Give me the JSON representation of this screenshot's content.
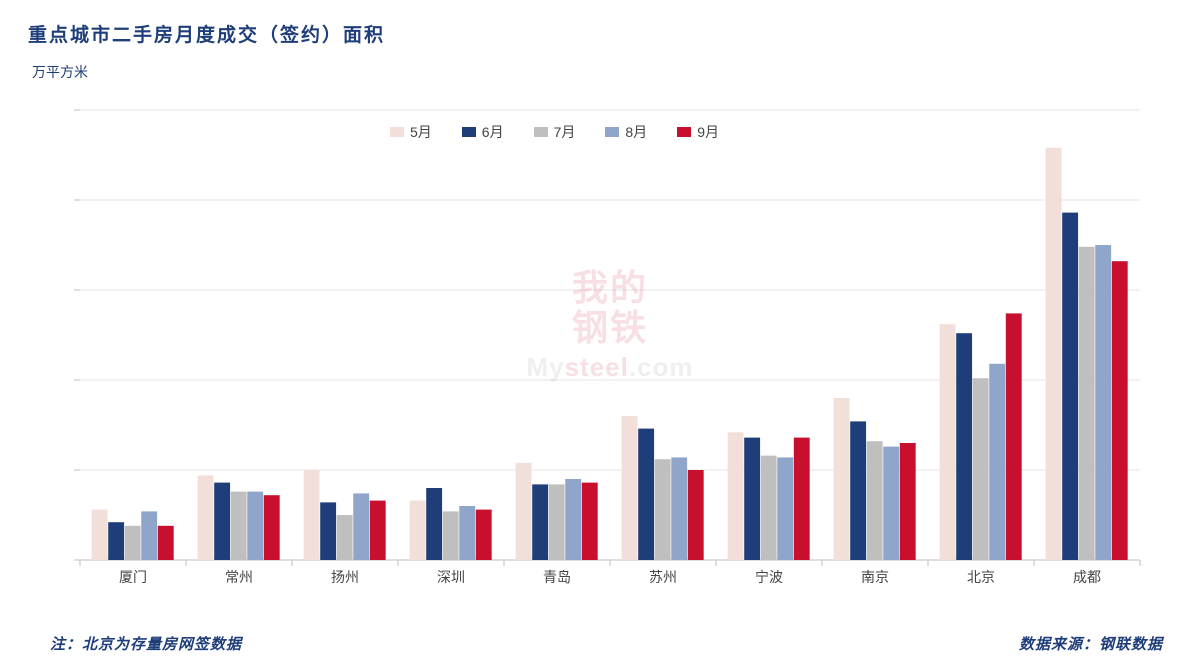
{
  "title": "重点城市二手房月度成交（签约）面积",
  "title_color": "#1f3e79",
  "y_unit": "万平方米",
  "y_unit_color": "#1f3e79",
  "footnote": "注：北京为存量房网签数据",
  "footnote_color": "#1f3e79",
  "source": "数据来源：钢联数据",
  "source_color": "#1f3e79",
  "watermark": {
    "line1": "我的",
    "line2": "钢铁",
    "sub_prefix": "My",
    "sub_red": "steel",
    "sub_suffix": ".com"
  },
  "chart": {
    "type": "bar",
    "background_color": "#ffffff",
    "grid_color": "#e6e6e6",
    "axis_color": "#bfbfbf",
    "ylim": [
      0,
      250
    ],
    "ytick_step": 50,
    "yticks": [
      0,
      50,
      100,
      150,
      200,
      250
    ],
    "categories": [
      "厦门",
      "常州",
      "扬州",
      "深圳",
      "青岛",
      "苏州",
      "宁波",
      "南京",
      "北京",
      "成都"
    ],
    "series": [
      {
        "label": "5月",
        "color": "#f3dfd9",
        "values": [
          28,
          47,
          50,
          33,
          54,
          80,
          71,
          90,
          131,
          229
        ]
      },
      {
        "label": "6月",
        "color": "#1f3e79",
        "values": [
          21,
          43,
          32,
          40,
          42,
          73,
          68,
          77,
          126,
          193
        ]
      },
      {
        "label": "7月",
        "color": "#bfbfbf",
        "values": [
          19,
          38,
          25,
          27,
          42,
          56,
          58,
          66,
          101,
          174
        ]
      },
      {
        "label": "8月",
        "color": "#8fa5c9",
        "values": [
          27,
          38,
          37,
          30,
          45,
          57,
          57,
          63,
          109,
          175
        ]
      },
      {
        "label": "9月",
        "color": "#c8102e",
        "values": [
          19,
          36,
          33,
          28,
          43,
          50,
          68,
          65,
          137,
          166
        ]
      }
    ],
    "bar_group_width": 0.78,
    "label_fontsize": 13,
    "x_label_fontsize": 14
  }
}
